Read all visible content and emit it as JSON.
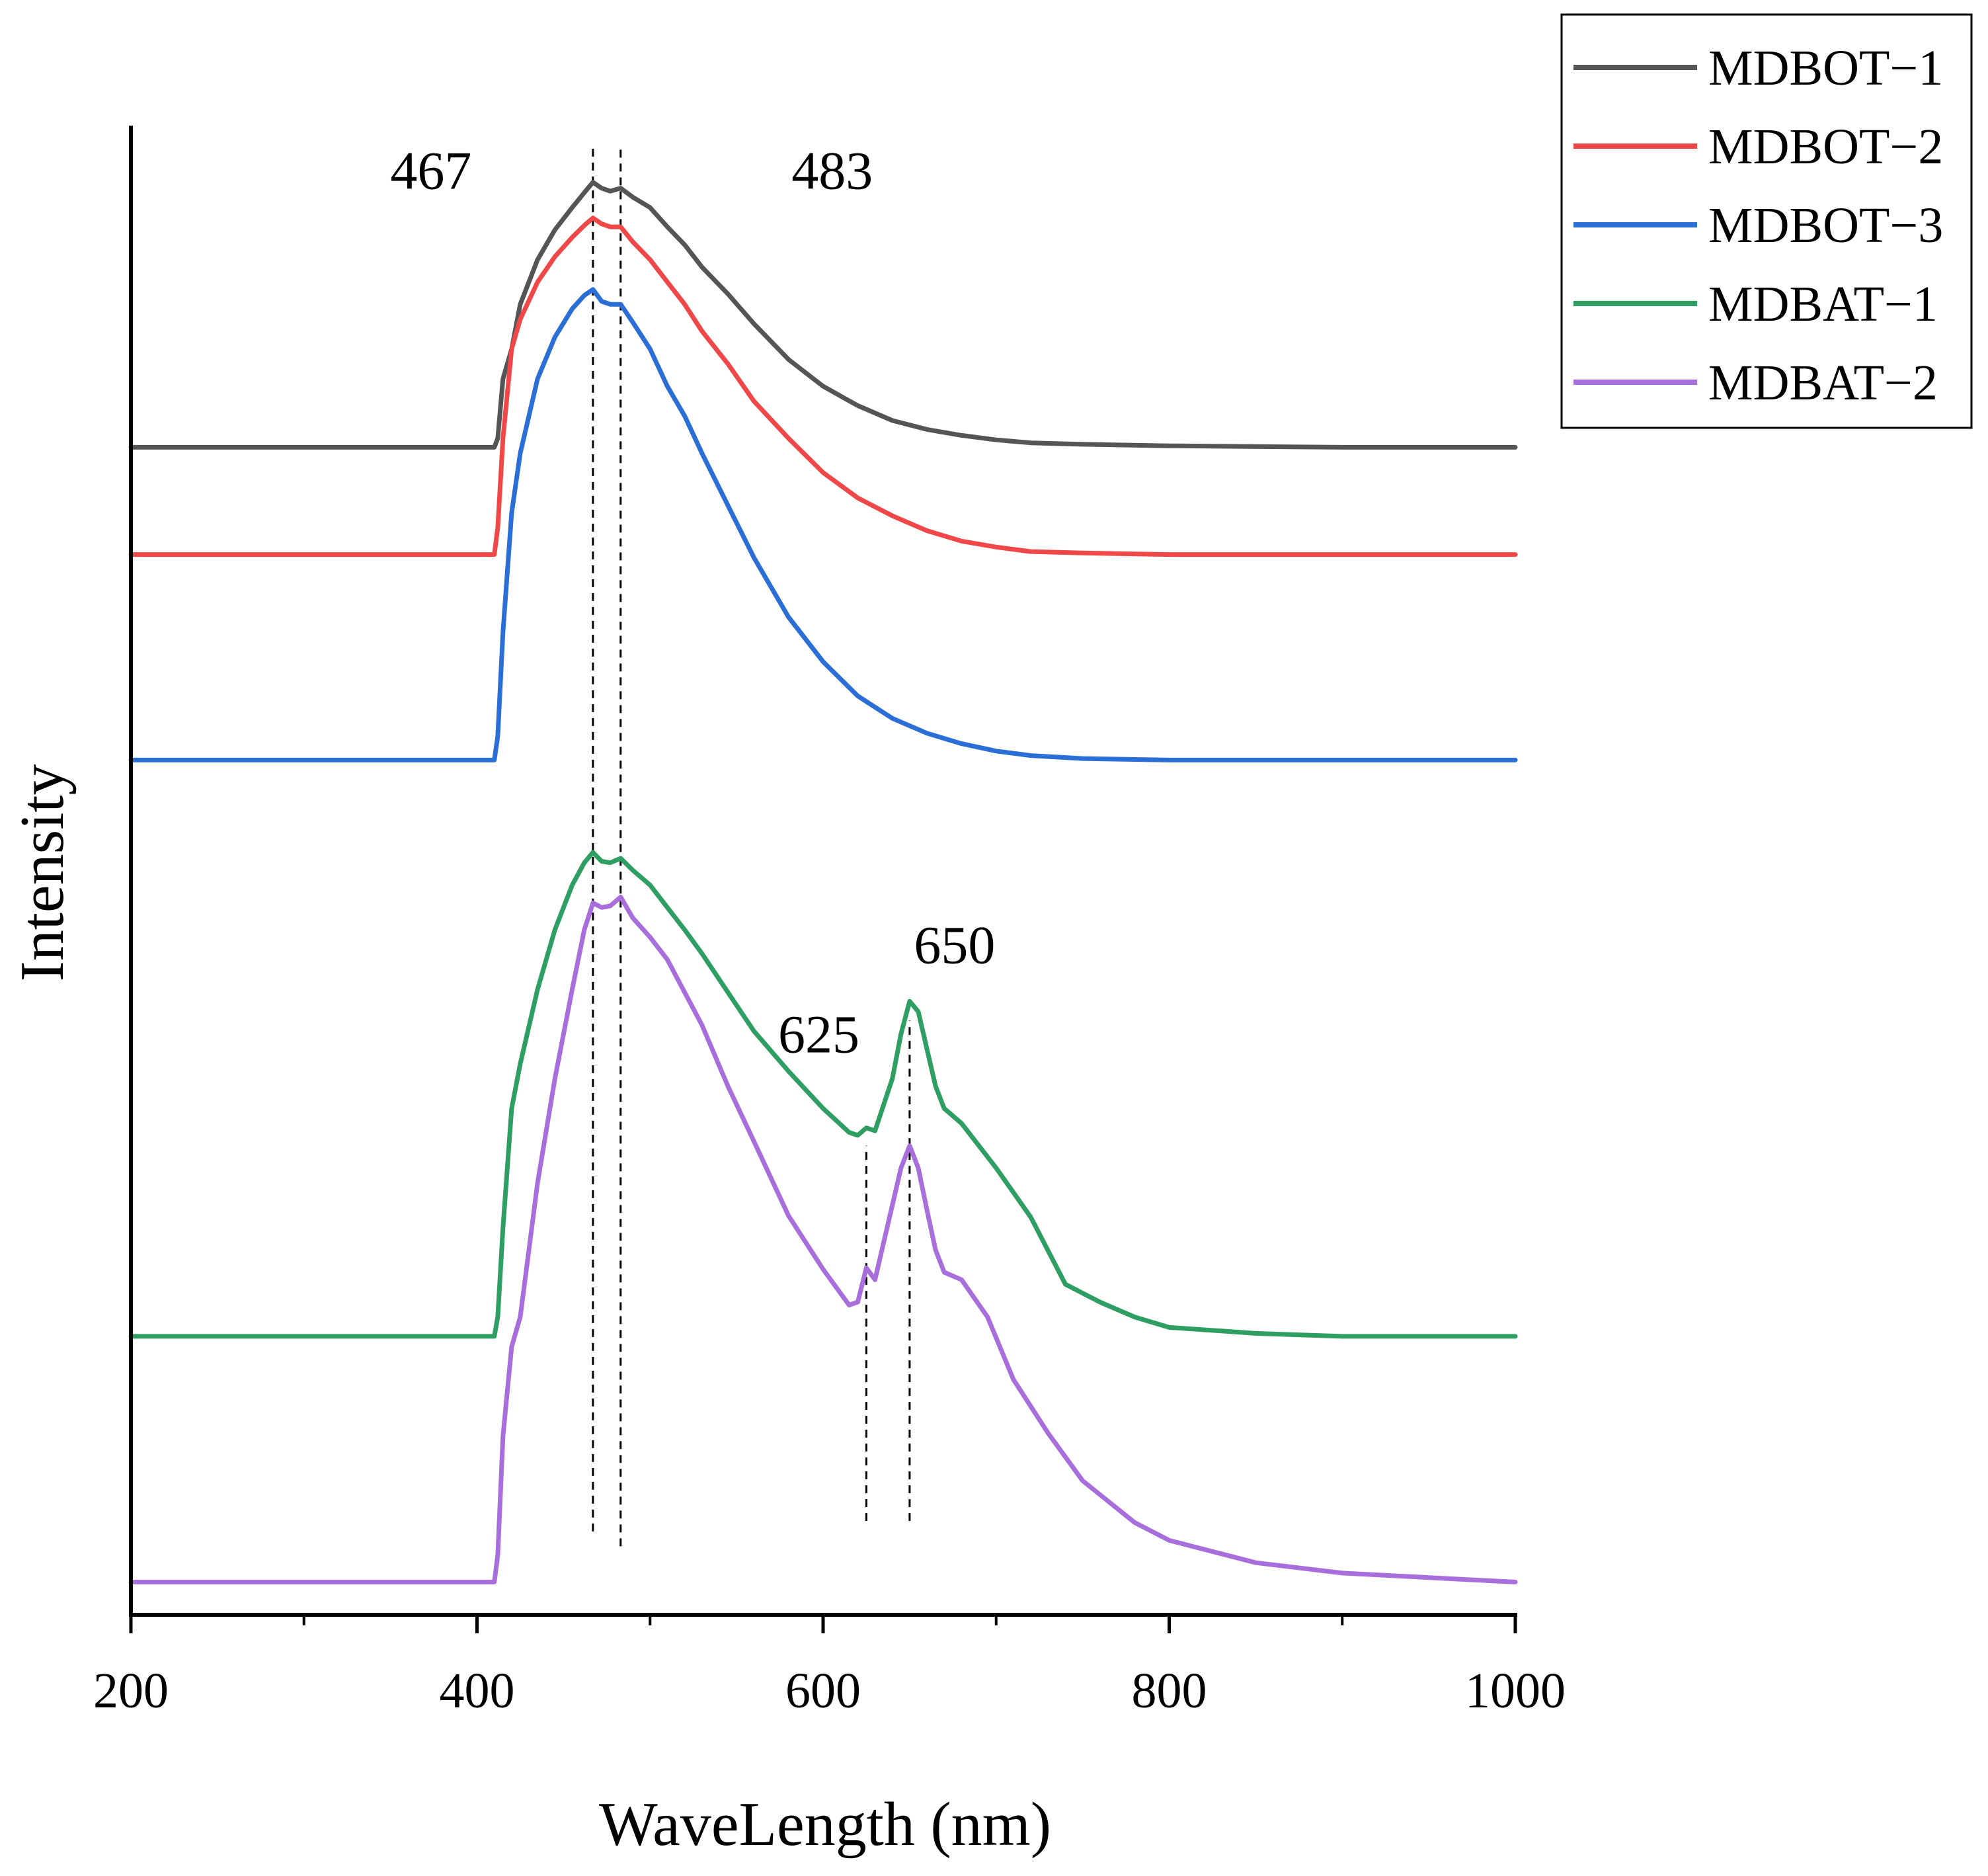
{
  "chart_data": {
    "type": "line",
    "title": "",
    "xlabel": "WaveLength (nm)",
    "ylabel": "Intensity",
    "xlim": [
      200,
      1000
    ],
    "xticks": [
      200,
      400,
      600,
      800,
      1000
    ],
    "xtick_labels": [
      "200",
      "400",
      "600",
      "800",
      "1000"
    ],
    "minor_xticks": [
      300,
      500,
      700,
      900
    ],
    "ylim": [
      0,
      1
    ],
    "y_ticks_shown": false,
    "grid": false,
    "legend_position": "top-right, outside plot",
    "annotations": [
      {
        "label": "467",
        "x": 467,
        "y": 0.97
      },
      {
        "label": "483",
        "x": 483,
        "y": 0.97
      },
      {
        "label": "625",
        "x": 625,
        "y": 0.39
      },
      {
        "label": "650",
        "x": 650,
        "y": 0.45
      }
    ],
    "reference_lines": [
      {
        "x": 467,
        "y_from": 0.056,
        "y_to": 0.985
      },
      {
        "x": 483,
        "y_from": 0.046,
        "y_to": 0.985
      },
      {
        "x": 625,
        "y_from": 0.063,
        "y_to": 0.315
      },
      {
        "x": 650,
        "y_from": 0.063,
        "y_to": 0.399
      }
    ],
    "series": [
      {
        "name": "MDBOT−1",
        "color": "#555555",
        "points": [
          [
            200,
            0.784
          ],
          [
            410,
            0.784
          ],
          [
            412,
            0.79
          ],
          [
            415,
            0.83
          ],
          [
            420,
            0.85
          ],
          [
            425,
            0.88
          ],
          [
            435,
            0.91
          ],
          [
            445,
            0.93
          ],
          [
            455,
            0.945
          ],
          [
            462,
            0.955
          ],
          [
            467,
            0.962
          ],
          [
            472,
            0.958
          ],
          [
            477,
            0.956
          ],
          [
            483,
            0.958
          ],
          [
            490,
            0.952
          ],
          [
            500,
            0.945
          ],
          [
            510,
            0.932
          ],
          [
            520,
            0.92
          ],
          [
            530,
            0.905
          ],
          [
            545,
            0.887
          ],
          [
            560,
            0.867
          ],
          [
            580,
            0.843
          ],
          [
            600,
            0.825
          ],
          [
            620,
            0.812
          ],
          [
            640,
            0.802
          ],
          [
            660,
            0.796
          ],
          [
            680,
            0.792
          ],
          [
            700,
            0.789
          ],
          [
            720,
            0.787
          ],
          [
            750,
            0.786
          ],
          [
            800,
            0.785
          ],
          [
            900,
            0.784
          ],
          [
            1000,
            0.784
          ]
        ]
      },
      {
        "name": "MDBOT−2",
        "color": "#f04848",
        "points": [
          [
            200,
            0.712
          ],
          [
            410,
            0.712
          ],
          [
            412,
            0.73
          ],
          [
            415,
            0.79
          ],
          [
            420,
            0.85
          ],
          [
            425,
            0.87
          ],
          [
            435,
            0.895
          ],
          [
            445,
            0.912
          ],
          [
            455,
            0.925
          ],
          [
            462,
            0.933
          ],
          [
            467,
            0.938
          ],
          [
            472,
            0.934
          ],
          [
            477,
            0.932
          ],
          [
            483,
            0.932
          ],
          [
            490,
            0.922
          ],
          [
            500,
            0.91
          ],
          [
            510,
            0.895
          ],
          [
            520,
            0.88
          ],
          [
            530,
            0.862
          ],
          [
            545,
            0.84
          ],
          [
            560,
            0.815
          ],
          [
            580,
            0.79
          ],
          [
            600,
            0.767
          ],
          [
            620,
            0.75
          ],
          [
            640,
            0.738
          ],
          [
            660,
            0.728
          ],
          [
            680,
            0.721
          ],
          [
            700,
            0.717
          ],
          [
            720,
            0.714
          ],
          [
            750,
            0.713
          ],
          [
            800,
            0.712
          ],
          [
            900,
            0.712
          ],
          [
            1000,
            0.712
          ]
        ]
      },
      {
        "name": "MDBOT−3",
        "color": "#2b6fd6",
        "points": [
          [
            200,
            0.574
          ],
          [
            410,
            0.574
          ],
          [
            412,
            0.59
          ],
          [
            415,
            0.66
          ],
          [
            420,
            0.74
          ],
          [
            425,
            0.78
          ],
          [
            435,
            0.83
          ],
          [
            445,
            0.858
          ],
          [
            455,
            0.877
          ],
          [
            462,
            0.886
          ],
          [
            467,
            0.89
          ],
          [
            472,
            0.882
          ],
          [
            477,
            0.88
          ],
          [
            483,
            0.88
          ],
          [
            490,
            0.868
          ],
          [
            500,
            0.85
          ],
          [
            510,
            0.825
          ],
          [
            520,
            0.805
          ],
          [
            530,
            0.78
          ],
          [
            545,
            0.745
          ],
          [
            560,
            0.71
          ],
          [
            580,
            0.67
          ],
          [
            600,
            0.64
          ],
          [
            620,
            0.617
          ],
          [
            640,
            0.602
          ],
          [
            660,
            0.592
          ],
          [
            680,
            0.585
          ],
          [
            700,
            0.58
          ],
          [
            720,
            0.577
          ],
          [
            750,
            0.575
          ],
          [
            800,
            0.574
          ],
          [
            900,
            0.574
          ],
          [
            1000,
            0.574
          ]
        ]
      },
      {
        "name": "MDBAT−1",
        "color": "#2e9e63",
        "points": [
          [
            200,
            0.187
          ],
          [
            410,
            0.187
          ],
          [
            412,
            0.2
          ],
          [
            415,
            0.26
          ],
          [
            420,
            0.34
          ],
          [
            425,
            0.37
          ],
          [
            435,
            0.42
          ],
          [
            445,
            0.46
          ],
          [
            455,
            0.49
          ],
          [
            462,
            0.505
          ],
          [
            467,
            0.512
          ],
          [
            472,
            0.506
          ],
          [
            477,
            0.505
          ],
          [
            483,
            0.508
          ],
          [
            490,
            0.5
          ],
          [
            500,
            0.49
          ],
          [
            510,
            0.475
          ],
          [
            520,
            0.46
          ],
          [
            530,
            0.444
          ],
          [
            545,
            0.418
          ],
          [
            560,
            0.392
          ],
          [
            580,
            0.365
          ],
          [
            600,
            0.34
          ],
          [
            615,
            0.324
          ],
          [
            620,
            0.322
          ],
          [
            625,
            0.327
          ],
          [
            630,
            0.325
          ],
          [
            640,
            0.36
          ],
          [
            645,
            0.39
          ],
          [
            650,
            0.412
          ],
          [
            655,
            0.405
          ],
          [
            660,
            0.38
          ],
          [
            665,
            0.355
          ],
          [
            670,
            0.34
          ],
          [
            680,
            0.33
          ],
          [
            700,
            0.3
          ],
          [
            720,
            0.267
          ],
          [
            740,
            0.222
          ],
          [
            760,
            0.21
          ],
          [
            780,
            0.2
          ],
          [
            800,
            0.193
          ],
          [
            850,
            0.189
          ],
          [
            900,
            0.187
          ],
          [
            1000,
            0.187
          ]
        ]
      },
      {
        "name": "MDBAT−2",
        "color": "#a86fdc",
        "points": [
          [
            200,
            0.022
          ],
          [
            410,
            0.022
          ],
          [
            412,
            0.04
          ],
          [
            415,
            0.12
          ],
          [
            420,
            0.18
          ],
          [
            425,
            0.2
          ],
          [
            435,
            0.29
          ],
          [
            445,
            0.36
          ],
          [
            455,
            0.42
          ],
          [
            462,
            0.46
          ],
          [
            467,
            0.478
          ],
          [
            472,
            0.475
          ],
          [
            477,
            0.476
          ],
          [
            483,
            0.482
          ],
          [
            490,
            0.468
          ],
          [
            500,
            0.455
          ],
          [
            510,
            0.44
          ],
          [
            520,
            0.418
          ],
          [
            530,
            0.396
          ],
          [
            545,
            0.355
          ],
          [
            560,
            0.318
          ],
          [
            580,
            0.268
          ],
          [
            600,
            0.232
          ],
          [
            615,
            0.208
          ],
          [
            620,
            0.21
          ],
          [
            625,
            0.233
          ],
          [
            630,
            0.225
          ],
          [
            640,
            0.275
          ],
          [
            645,
            0.3
          ],
          [
            650,
            0.315
          ],
          [
            655,
            0.3
          ],
          [
            660,
            0.272
          ],
          [
            665,
            0.245
          ],
          [
            670,
            0.23
          ],
          [
            680,
            0.225
          ],
          [
            695,
            0.2
          ],
          [
            710,
            0.158
          ],
          [
            730,
            0.122
          ],
          [
            750,
            0.09
          ],
          [
            780,
            0.062
          ],
          [
            800,
            0.05
          ],
          [
            850,
            0.035
          ],
          [
            900,
            0.028
          ],
          [
            1000,
            0.022
          ]
        ]
      }
    ]
  }
}
